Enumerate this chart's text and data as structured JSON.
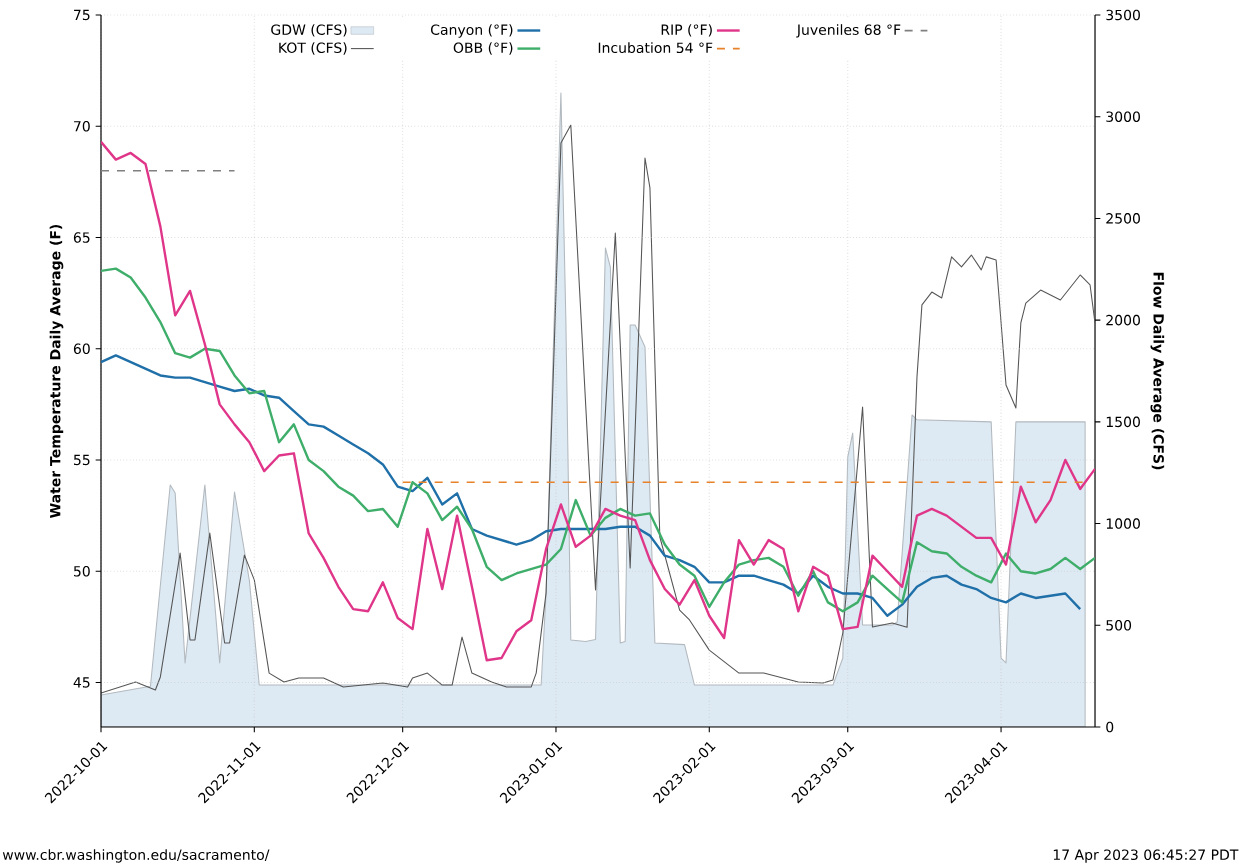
{
  "chart_data": {
    "type": "line",
    "ylabel": "Water Temperature Daily Average (F)",
    "y2label": "Flow Daily Average (CFS)",
    "annotations": [
      "www.cbr.washington.edu/sacramento/",
      "17 Apr 2023 06:45:27 PDT"
    ],
    "x": [
      "2022-10-01",
      "2022-10-04",
      "2022-10-07",
      "2022-10-10",
      "2022-10-13",
      "2022-10-16",
      "2022-10-19",
      "2022-10-22",
      "2022-10-25",
      "2022-10-28",
      "2022-10-31",
      "2022-11-03",
      "2022-11-06",
      "2022-11-09",
      "2022-11-12",
      "2022-11-15",
      "2022-11-18",
      "2022-11-21",
      "2022-11-24",
      "2022-11-27",
      "2022-11-30",
      "2022-12-03",
      "2022-12-06",
      "2022-12-09",
      "2022-12-12",
      "2022-12-15",
      "2022-12-18",
      "2022-12-21",
      "2022-12-24",
      "2022-12-27",
      "2022-12-30",
      "2023-01-02",
      "2023-01-05",
      "2023-01-08",
      "2023-01-11",
      "2023-01-14",
      "2023-01-17",
      "2023-01-20",
      "2023-01-23",
      "2023-01-26",
      "2023-01-29",
      "2023-02-01",
      "2023-02-04",
      "2023-02-07",
      "2023-02-10",
      "2023-02-13",
      "2023-02-16",
      "2023-02-19",
      "2023-02-22",
      "2023-02-25",
      "2023-02-28",
      "2023-03-03",
      "2023-03-06",
      "2023-03-09",
      "2023-03-12",
      "2023-03-15",
      "2023-03-18",
      "2023-03-21",
      "2023-03-24",
      "2023-03-27",
      "2023-03-30",
      "2023-04-02",
      "2023-04-05",
      "2023-04-08",
      "2023-04-11",
      "2023-04-14",
      "2023-04-17",
      "2023-04-20"
    ],
    "series": [
      {
        "name": "GDW (CFS)",
        "type": "area",
        "axis": "y2",
        "color": "#dde9f3",
        "x": [
          "2022-10-01",
          "2022-10-11",
          "2022-10-15",
          "2022-10-16",
          "2022-10-18",
          "2022-10-22",
          "2022-10-25",
          "2022-10-28",
          "2022-10-31",
          "2022-11-02",
          "2022-12-29",
          "2022-12-30",
          "2023-01-02",
          "2023-01-03",
          "2023-01-04",
          "2023-01-07",
          "2023-01-09",
          "2023-01-11",
          "2023-01-12",
          "2023-01-14",
          "2023-01-15",
          "2023-01-16",
          "2023-01-17",
          "2023-01-19",
          "2023-01-21",
          "2023-01-27",
          "2023-01-29",
          "2023-02-26",
          "2023-02-28",
          "2023-03-01",
          "2023-03-02",
          "2023-03-04",
          "2023-03-10",
          "2023-03-11",
          "2023-03-14",
          "2023-03-15",
          "2023-03-30",
          "2023-04-01",
          "2023-04-02",
          "2023-04-04",
          "2023-04-18"
        ],
        "values": [
          157,
          200,
          1190,
          1150,
          315,
          1190,
          315,
          1155,
          720,
          206,
          206,
          660,
          3117,
          2000,
          428,
          420,
          430,
          2355,
          2260,
          413,
          420,
          1976,
          1976,
          1868,
          413,
          405,
          206,
          206,
          339,
          1327,
          1445,
          501,
          501,
          516,
          1534,
          1510,
          1500,
          339,
          315,
          1500,
          1500
        ]
      },
      {
        "name": "KOT (CFS)",
        "axis": "y2",
        "color": "#555555",
        "x": [
          "2022-10-01",
          "2022-10-08",
          "2022-10-12",
          "2022-10-13",
          "2022-10-17",
          "2022-10-19",
          "2022-10-20",
          "2022-10-23",
          "2022-10-26",
          "2022-10-27",
          "2022-10-30",
          "2022-11-01",
          "2022-11-04",
          "2022-11-07",
          "2022-11-10",
          "2022-11-15",
          "2022-11-19",
          "2022-11-27",
          "2022-12-02",
          "2022-12-03",
          "2022-12-06",
          "2022-12-09",
          "2022-12-11",
          "2022-12-13",
          "2022-12-15",
          "2022-12-19",
          "2022-12-22",
          "2022-12-27",
          "2022-12-28",
          "2022-12-30",
          "2023-01-02",
          "2023-01-04",
          "2023-01-09",
          "2023-01-13",
          "2023-01-16",
          "2023-01-19",
          "2023-01-20",
          "2023-01-22",
          "2023-01-26",
          "2023-01-28",
          "2023-02-01",
          "2023-02-07",
          "2023-02-12",
          "2023-02-19",
          "2023-02-24",
          "2023-02-26",
          "2023-02-28",
          "2023-03-04",
          "2023-03-06",
          "2023-03-10",
          "2023-03-13",
          "2023-03-15",
          "2023-03-16",
          "2023-03-18",
          "2023-03-20",
          "2023-03-22",
          "2023-03-24",
          "2023-03-26",
          "2023-03-28",
          "2023-03-29",
          "2023-03-31",
          "2023-04-02",
          "2023-04-04",
          "2023-04-05",
          "2023-04-06",
          "2023-04-09",
          "2023-04-13",
          "2023-04-17",
          "2023-04-19",
          "2023-04-20"
        ],
        "values": [
          167,
          221,
          182,
          246,
          855,
          428,
          428,
          953,
          413,
          413,
          845,
          723,
          265,
          221,
          241,
          241,
          197,
          216,
          197,
          241,
          265,
          206,
          206,
          442,
          265,
          221,
          197,
          197,
          265,
          659,
          2871,
          2959,
          673,
          2428,
          782,
          2797,
          2650,
          934,
          575,
          526,
          378,
          265,
          265,
          221,
          216,
          231,
          462,
          1573,
          492,
          511,
          490,
          1721,
          2075,
          2138,
          2109,
          2311,
          2262,
          2320,
          2247,
          2311,
          2296,
          1681,
          1568,
          1986,
          2084,
          2148,
          2099,
          2222,
          2173,
          1986
        ]
      },
      {
        "name": "Canyon (°F)",
        "color": "#1f6fa8",
        "values": [
          59.4,
          59.7,
          59.4,
          59.1,
          58.8,
          58.7,
          58.7,
          58.5,
          58.3,
          58.1,
          58.2,
          57.9,
          57.8,
          57.2,
          56.6,
          56.5,
          56.1,
          55.7,
          55.3,
          54.8,
          53.8,
          53.6,
          54.2,
          53.0,
          53.5,
          51.9,
          51.6,
          51.4,
          51.2,
          51.4,
          51.8,
          51.9,
          51.9,
          51.9,
          51.9,
          52.0,
          52.0,
          51.6,
          50.7,
          50.5,
          50.2,
          49.5,
          49.5,
          49.8,
          49.8,
          49.6,
          49.4,
          49.0,
          49.8,
          49.3,
          49.0,
          49.0,
          48.8,
          48.0,
          48.5,
          49.3,
          49.7,
          49.8,
          49.4,
          49.2,
          48.8,
          48.6,
          49.0,
          48.8,
          48.9,
          49.0,
          48.3,
          null
        ]
      },
      {
        "name": "OBB (°F)",
        "color": "#3fae6a",
        "values": [
          63.5,
          63.6,
          63.2,
          62.3,
          61.2,
          59.8,
          59.6,
          60.0,
          59.9,
          58.8,
          58.0,
          58.1,
          55.8,
          56.6,
          55.0,
          54.5,
          53.8,
          53.4,
          52.7,
          52.8,
          52.0,
          54.0,
          53.5,
          52.3,
          52.9,
          51.9,
          50.2,
          49.6,
          49.9,
          50.1,
          50.3,
          51.0,
          53.2,
          51.6,
          52.4,
          52.8,
          52.5,
          52.6,
          51.2,
          50.3,
          49.8,
          48.4,
          49.5,
          50.3,
          50.5,
          50.6,
          50.2,
          48.9,
          50.0,
          48.6,
          48.2,
          48.6,
          49.8,
          49.2,
          48.6,
          51.3,
          50.9,
          50.8,
          50.2,
          49.8,
          49.5,
          50.8,
          50.0,
          49.9,
          50.1,
          50.6,
          50.1,
          50.6
        ]
      },
      {
        "name": "RIP (°F)",
        "color": "#e0368a",
        "values": [
          69.3,
          68.5,
          68.8,
          68.3,
          65.5,
          61.5,
          62.6,
          60.2,
          57.5,
          56.6,
          55.8,
          54.5,
          55.2,
          55.3,
          51.7,
          50.6,
          49.3,
          48.3,
          48.2,
          49.5,
          47.9,
          47.4,
          51.9,
          49.2,
          52.5,
          49.3,
          46.0,
          46.1,
          47.3,
          47.8,
          51.0,
          53.0,
          51.1,
          51.6,
          52.8,
          52.5,
          52.3,
          50.5,
          49.2,
          48.5,
          49.6,
          48.0,
          47.0,
          51.4,
          50.3,
          51.4,
          51.0,
          48.2,
          50.2,
          49.8,
          47.4,
          47.5,
          50.7,
          50.0,
          49.3,
          52.5,
          52.8,
          52.5,
          52.0,
          51.5,
          51.5,
          50.3,
          53.8,
          52.2,
          53.2,
          55.0,
          53.7,
          54.6
        ]
      },
      {
        "name": "Incubation 54 °F",
        "color": "#e8822a",
        "line_style": "dashed",
        "x": [
          "2022-12-01",
          "2023-04-18"
        ],
        "values": [
          54,
          54
        ]
      },
      {
        "name": "Juveniles 68 °F",
        "color": "#808080",
        "line_style": "dashed",
        "x": [
          "2022-10-01",
          "2022-10-28"
        ],
        "values": [
          68,
          68
        ]
      }
    ],
    "xlim": [
      "2022-10-01",
      "2023-04-20"
    ],
    "xticks": [
      "2022-10-01",
      "2022-11-01",
      "2022-12-01",
      "2023-01-01",
      "2023-02-01",
      "2023-03-01",
      "2023-04-01"
    ],
    "ylim": [
      43,
      75
    ],
    "yticks": [
      45,
      50,
      55,
      60,
      65,
      70,
      75
    ],
    "y2lim": [
      0,
      3500
    ],
    "y2ticks": [
      0,
      500,
      1000,
      1500,
      2000,
      2500,
      3000,
      3500
    ],
    "grid": true,
    "legend": "top",
    "marker": "none",
    "line_style": "solid"
  }
}
